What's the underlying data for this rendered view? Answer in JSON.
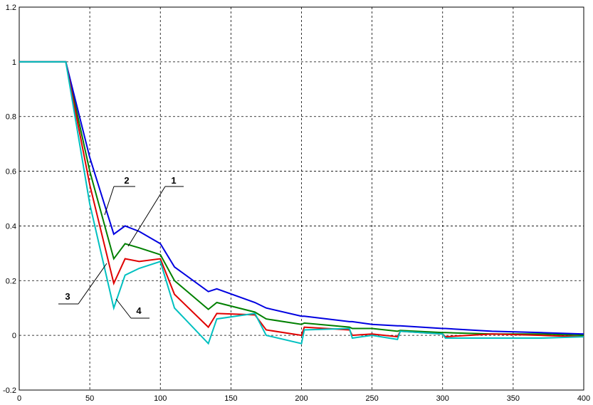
{
  "chart_data": {
    "type": "line",
    "x": [
      0,
      33,
      50,
      67,
      75,
      85,
      100,
      110,
      134,
      140,
      167,
      175,
      200,
      202,
      234,
      236,
      250,
      268,
      270,
      300,
      302,
      335,
      370,
      400
    ],
    "series": [
      {
        "name": "1",
        "color": "#008000",
        "values": [
          1,
          1,
          0.6,
          0.28,
          0.335,
          0.32,
          0.295,
          0.2,
          0.095,
          0.12,
          0.085,
          0.06,
          0.04,
          0.045,
          0.03,
          0.025,
          0.025,
          0.015,
          0.018,
          0.01,
          0.01,
          0.005,
          0.005,
          0
        ]
      },
      {
        "name": "2",
        "color": "#0000e0",
        "values": [
          1,
          1,
          0.65,
          0.37,
          0.4,
          0.38,
          0.335,
          0.25,
          0.16,
          0.17,
          0.12,
          0.1,
          0.07,
          0.07,
          0.05,
          0.05,
          0.04,
          0.035,
          0.035,
          0.025,
          0.025,
          0.015,
          0.01,
          0.005
        ]
      },
      {
        "name": "3",
        "color": "#e00000",
        "values": [
          1,
          1,
          0.55,
          0.19,
          0.28,
          0.27,
          0.28,
          0.15,
          0.03,
          0.08,
          0.075,
          0.02,
          0,
          0.03,
          0.02,
          0,
          0.005,
          -0.005,
          0.015,
          0.005,
          -0.005,
          0.005,
          0,
          -0.005
        ]
      },
      {
        "name": "4",
        "color": "#00c0c0",
        "values": [
          1,
          1,
          0.48,
          0.1,
          0.22,
          0.245,
          0.27,
          0.1,
          -0.03,
          0.06,
          0.08,
          0,
          -0.03,
          0.02,
          0.025,
          -0.01,
          0,
          -0.015,
          0.015,
          0.005,
          -0.01,
          -0.01,
          -0.01,
          -0.005
        ]
      }
    ],
    "xlim": [
      0,
      400
    ],
    "xticks": [
      0,
      50,
      100,
      150,
      200,
      250,
      300,
      350,
      400
    ],
    "ylim": [
      -0.2,
      1.2
    ],
    "yticks": [
      -0.2,
      0,
      0.2,
      0.4,
      0.6,
      0.8,
      1,
      1.2
    ],
    "grid": true
  }
}
